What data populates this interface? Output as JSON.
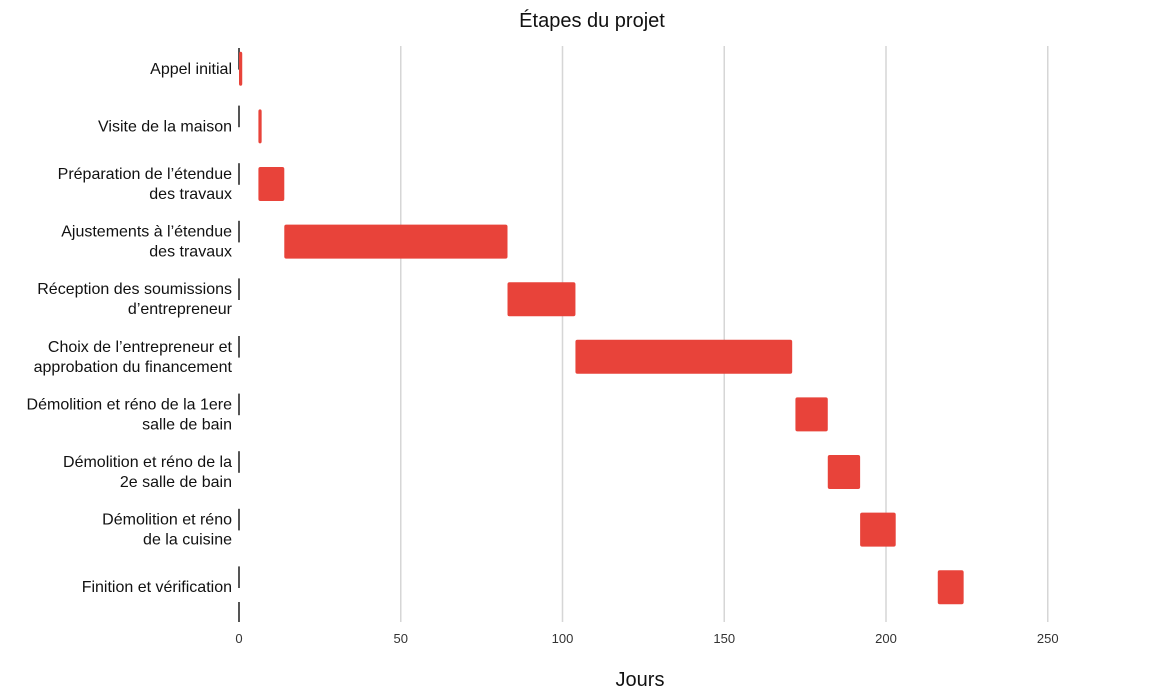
{
  "chart_data": {
    "type": "bar",
    "orientation": "horizontal-gantt",
    "title": "Étapes du projet",
    "xlabel": "Jours",
    "ylabel": "",
    "xlim": [
      0,
      280
    ],
    "x_ticks": [
      0,
      50,
      100,
      150,
      200,
      250
    ],
    "grid": "vertical",
    "bar_color": "#e8433a",
    "tasks": [
      {
        "label_lines": [
          "Appel initial"
        ],
        "start": 0,
        "end": 1
      },
      {
        "label_lines": [
          "Visite de la maison"
        ],
        "start": 6,
        "end": 7
      },
      {
        "label_lines": [
          "Préparation de l’étendue",
          "des travaux"
        ],
        "start": 6,
        "end": 14
      },
      {
        "label_lines": [
          "Ajustements à l’étendue",
          "des travaux"
        ],
        "start": 14,
        "end": 83
      },
      {
        "label_lines": [
          "Réception des soumissions",
          "d’entrepreneur"
        ],
        "start": 83,
        "end": 104
      },
      {
        "label_lines": [
          "Choix de l’entrepreneur et",
          "approbation du financement"
        ],
        "start": 104,
        "end": 171
      },
      {
        "label_lines": [
          "Démolition et réno de la 1ere",
          "salle de bain"
        ],
        "start": 172,
        "end": 182
      },
      {
        "label_lines": [
          "Démolition et réno de la",
          "2e salle de bain"
        ],
        "start": 182,
        "end": 192
      },
      {
        "label_lines": [
          "Démolition et réno",
          "de la cuisine"
        ],
        "start": 192,
        "end": 203
      },
      {
        "label_lines": [
          "Finition et vérification"
        ],
        "start": 216,
        "end": 224
      }
    ]
  }
}
